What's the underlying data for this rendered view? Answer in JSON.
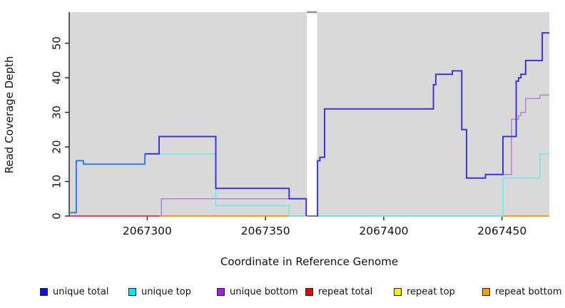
{
  "chart_data": {
    "type": "line",
    "subtype": "step-coverage",
    "title": "",
    "xlabel": "Coordinate in Reference Genome",
    "ylabel": "Read Coverage Depth",
    "xlim": [
      2067267,
      2067470
    ],
    "ylim": [
      0,
      59
    ],
    "x_ticks": [
      2067300,
      2067350,
      2067400,
      2067450
    ],
    "y_ticks": [
      0,
      10,
      20,
      30,
      40,
      50
    ],
    "plot_bg": "#d9d9d9",
    "axis_color": "#2a2a2a",
    "no_data_gap": {
      "from": 2067367.5,
      "to": 2067371.8,
      "cap_color": "#909090"
    },
    "series": [
      {
        "name": "repeat top",
        "color": "#f2e400",
        "width": 1.5,
        "segments": [
          {
            "points": [
              [
                2067267,
                0
              ],
              [
                2067367.5,
                0
              ]
            ]
          },
          {
            "points": [
              [
                2067371.8,
                0
              ],
              [
                2067470,
                0
              ]
            ]
          }
        ]
      },
      {
        "name": "repeat total",
        "color": "#cc4060",
        "width": 1.5,
        "segments": [
          {
            "points": [
              [
                2067267,
                0
              ],
              [
                2067367.5,
                0
              ]
            ]
          },
          {
            "points": [
              [
                2067371.8,
                0
              ],
              [
                2067470,
                0
              ]
            ]
          }
        ]
      },
      {
        "name": "repeat bottom",
        "color": "#ff9d0a",
        "width": 1.8,
        "segments": [
          {
            "points": [
              [
                2067267,
                0
              ],
              [
                2067367.5,
                0
              ]
            ]
          },
          {
            "points": [
              [
                2067371.8,
                0
              ],
              [
                2067470,
                0
              ]
            ]
          }
        ]
      },
      {
        "name": "unique bottom",
        "color": "#b87fe0",
        "width": 1.5,
        "segments": [
          {
            "points": [
              [
                2067305,
                0
              ],
              [
                2067306,
                5
              ],
              [
                2067367.5,
                5
              ]
            ]
          },
          {
            "points": [
              [
                2067371.8,
                0
              ],
              [
                2067372,
                16
              ],
              [
                2067373,
                17
              ],
              [
                2067375,
                31
              ],
              [
                2067421,
                38
              ],
              [
                2067422,
                41
              ],
              [
                2067429,
                42
              ],
              [
                2067433,
                25
              ],
              [
                2067435,
                11
              ],
              [
                2067443,
                12
              ],
              [
                2067454,
                28
              ],
              [
                2067457,
                29
              ],
              [
                2067458,
                30
              ],
              [
                2067460,
                34
              ],
              [
                2067466,
                35
              ],
              [
                2067470,
                35
              ]
            ]
          }
        ]
      },
      {
        "name": "unique top",
        "color": "#74e9e9",
        "width": 1.7,
        "segments": [
          {
            "points": [
              [
                2067267,
                1
              ],
              [
                2067270,
                16
              ],
              [
                2067273,
                15
              ],
              [
                2067299,
                18
              ],
              [
                2067329,
                3
              ],
              [
                2067360,
                0
              ],
              [
                2067367.5,
                0
              ]
            ]
          },
          {
            "points": [
              [
                2067371.8,
                0
              ],
              [
                2067450.4,
                11
              ],
              [
                2067466,
                18
              ],
              [
                2067470,
                18
              ]
            ]
          }
        ]
      },
      {
        "name": "unique total",
        "color": "#3c34d9",
        "width": 2,
        "segments": [
          {
            "points": [
              [
                2067267,
                1
              ],
              [
                2067270,
                16
              ],
              [
                2067273,
                15
              ],
              [
                2067299,
                18
              ]
            ],
            "color": "#2f7de0"
          },
          {
            "points": [
              [
                2067299,
                18
              ],
              [
                2067305,
                23
              ],
              [
                2067329,
                8
              ],
              [
                2067360,
                5
              ],
              [
                2067367.2,
                0
              ]
            ]
          },
          {
            "points": [
              [
                2067371.8,
                0
              ],
              [
                2067372,
                16
              ],
              [
                2067373,
                17
              ],
              [
                2067375,
                31
              ],
              [
                2067421,
                38
              ],
              [
                2067422,
                41
              ],
              [
                2067429,
                42
              ],
              [
                2067433,
                25
              ],
              [
                2067435,
                11
              ],
              [
                2067443,
                12
              ],
              [
                2067450.4,
                23
              ],
              [
                2067456,
                39
              ],
              [
                2067457,
                40
              ],
              [
                2067458,
                41
              ],
              [
                2067460,
                45
              ],
              [
                2067467,
                53
              ],
              [
                2067470,
                53
              ]
            ]
          }
        ]
      }
    ],
    "baseline_overlays": [
      {
        "name": "repeat-total-zero-segment",
        "from": 2067267,
        "to": 2067305,
        "color": "#cc4060"
      },
      {
        "name": "unique-top-zero-segment",
        "from": 2067371.8,
        "to": 2067450.4,
        "color": "#80c795"
      }
    ],
    "legend": {
      "items": [
        {
          "label": "unique total",
          "color": "#1010dd"
        },
        {
          "label": "unique top",
          "color": "#00e8e8"
        },
        {
          "label": "unique bottom",
          "color": "#a020f0"
        },
        {
          "label": "repeat total",
          "color": "#e80000"
        },
        {
          "label": "repeat top",
          "color": "#f2f200"
        },
        {
          "label": "repeat bottom",
          "color": "#ff9d0a"
        }
      ]
    }
  }
}
